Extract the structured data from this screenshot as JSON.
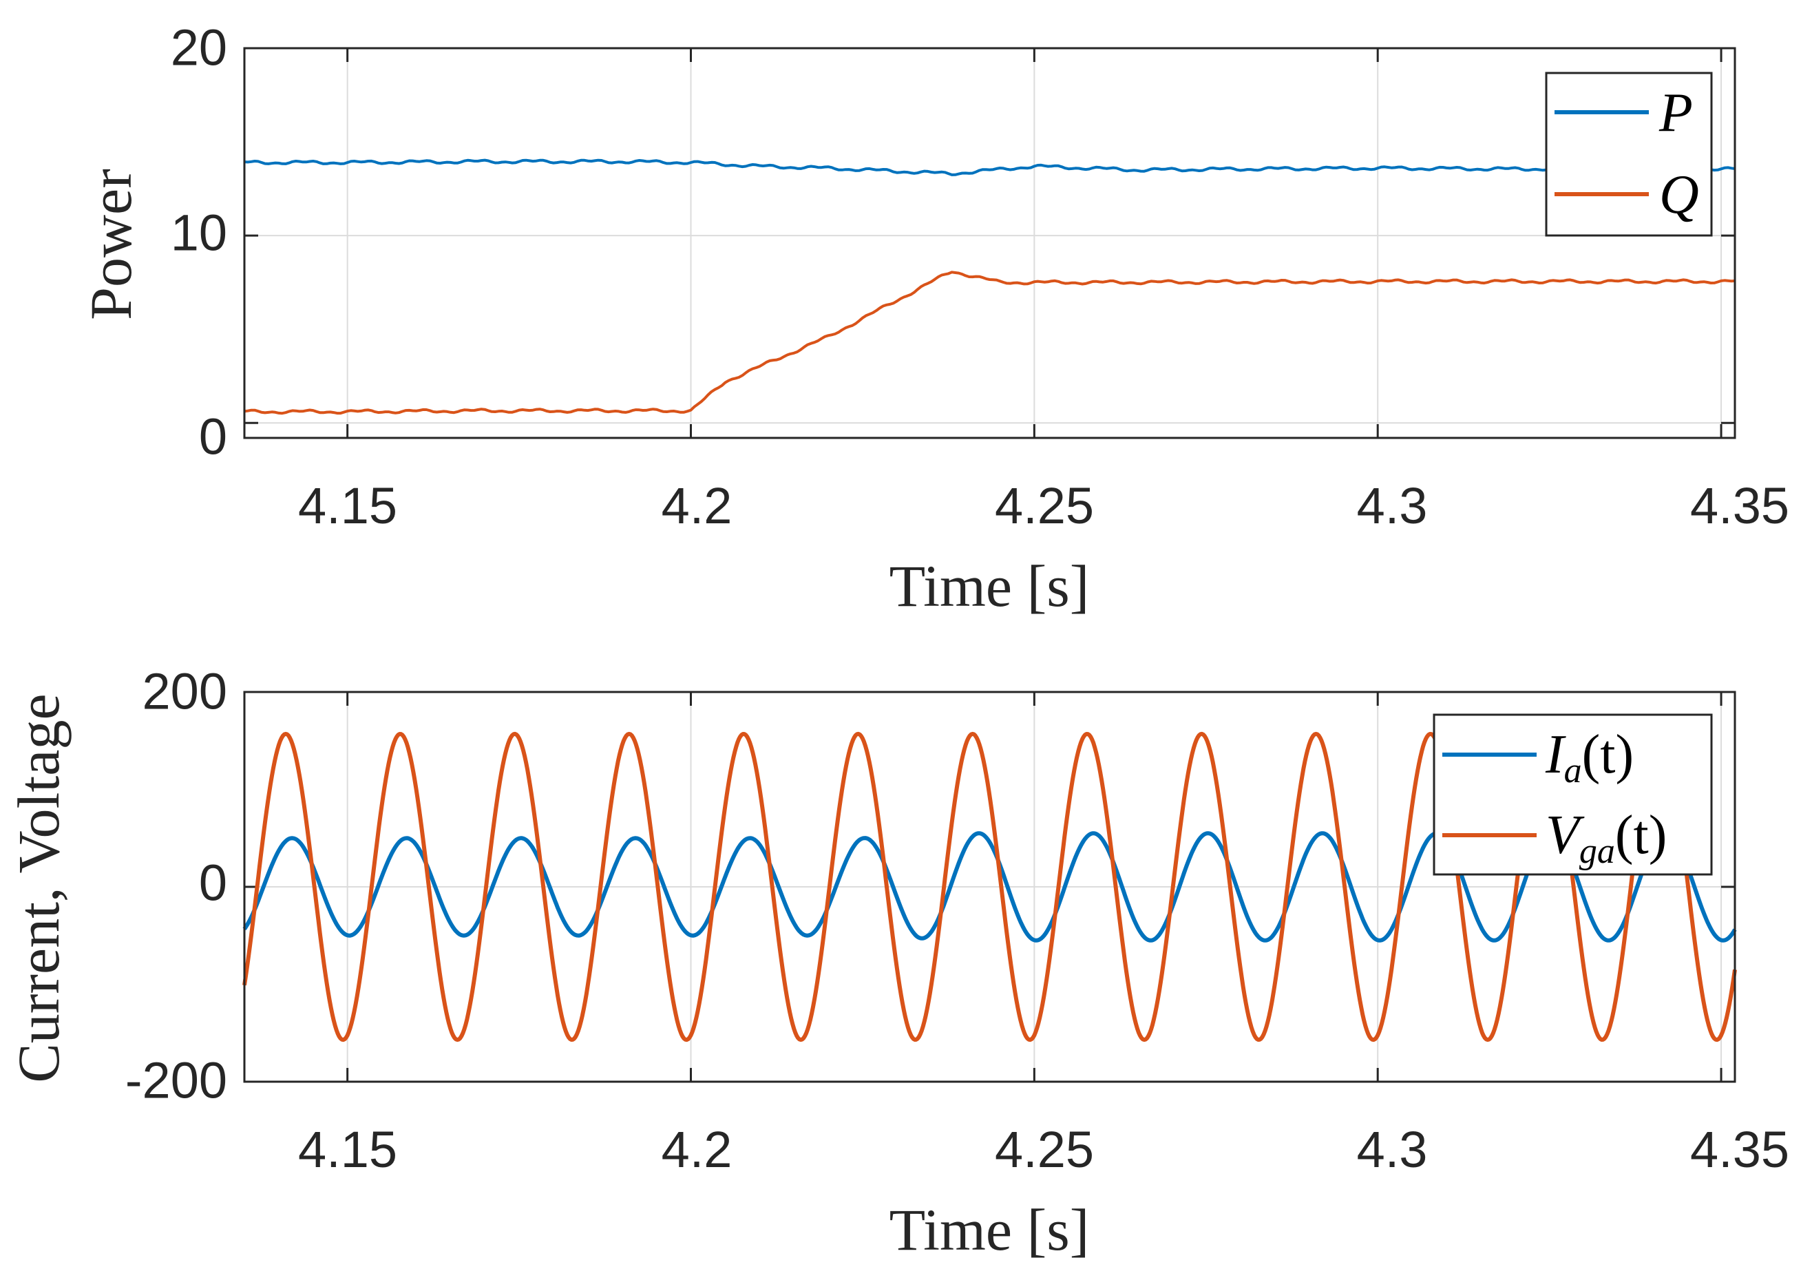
{
  "colors": {
    "blue": "#0072BD",
    "orange": "#D95319"
  },
  "chart_data": [
    {
      "type": "line",
      "xlabel": "Time [s]",
      "ylabel": "Power",
      "xlim": [
        4.135,
        4.352
      ],
      "ylim": [
        -0.8,
        20
      ],
      "xticks": [
        4.15,
        4.2,
        4.25,
        4.3,
        4.35
      ],
      "xtick_labels": [
        "4.15",
        "4.2",
        "4.25",
        "4.3",
        "4.35"
      ],
      "yticks": [
        0,
        10,
        20
      ],
      "ytick_labels": [
        "0",
        "10",
        "20"
      ],
      "grid": true,
      "legend_position": "top-right",
      "series": [
        {
          "name": "P",
          "color": "#0072BD",
          "x": [
            4.135,
            4.15,
            4.17,
            4.19,
            4.2,
            4.21,
            4.22,
            4.238,
            4.25,
            4.265,
            4.28,
            4.3,
            4.32,
            4.34,
            4.352
          ],
          "y": [
            13.9,
            13.9,
            13.95,
            13.95,
            13.9,
            13.7,
            13.6,
            13.3,
            13.7,
            13.5,
            13.55,
            13.6,
            13.55,
            13.6,
            13.55
          ]
        },
        {
          "name": "Q",
          "color": "#D95319",
          "x": [
            4.135,
            4.15,
            4.17,
            4.19,
            4.2,
            4.205,
            4.22,
            4.238,
            4.245,
            4.26,
            4.3,
            4.352
          ],
          "y": [
            0.6,
            0.6,
            0.65,
            0.65,
            0.65,
            2.2,
            4.6,
            8.1,
            7.5,
            7.5,
            7.55,
            7.55
          ]
        }
      ]
    },
    {
      "type": "line",
      "xlabel": "Time [s]",
      "ylabel": "Current, Voltage",
      "xlim": [
        4.135,
        4.352
      ],
      "ylim": [
        -200,
        200
      ],
      "xticks": [
        4.15,
        4.2,
        4.25,
        4.3,
        4.35
      ],
      "xtick_labels": [
        "4.15",
        "4.2",
        "4.25",
        "4.3",
        "4.35"
      ],
      "yticks": [
        -200,
        0,
        200
      ],
      "ytick_labels": [
        "-200",
        "0",
        "200"
      ],
      "grid": true,
      "legend_position": "top-right",
      "signal": {
        "frequency_hz": 60,
        "sample_step_s": 0.0002
      },
      "series": [
        {
          "name": "I",
          "subscript": "a",
          "arg": "(t)",
          "color": "#0072BD",
          "amplitude": [
            50,
            50,
            50,
            55,
            55
          ],
          "amplitude_x": [
            4.135,
            4.2,
            4.225,
            4.24,
            4.352
          ],
          "phase_deg": -60
        },
        {
          "name": "V",
          "subscript": "ga",
          "arg": "(t)",
          "color": "#D95319",
          "amplitude": [
            157,
            157
          ],
          "amplitude_x": [
            4.135,
            4.352
          ],
          "phase_deg": -40
        }
      ]
    }
  ]
}
